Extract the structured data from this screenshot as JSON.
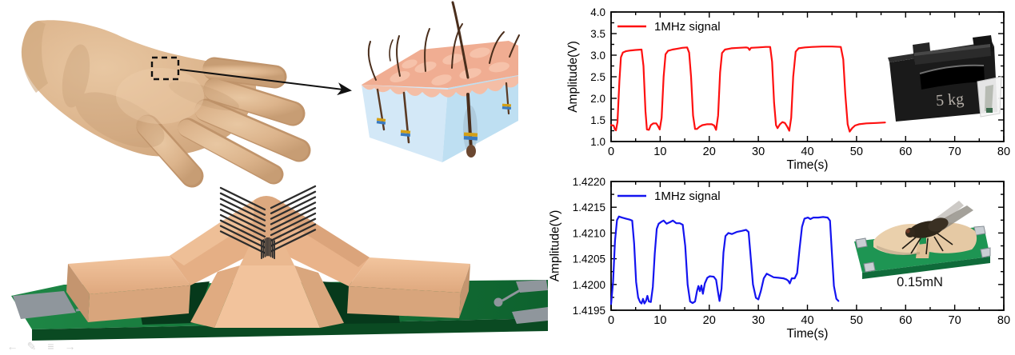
{
  "figure": {
    "description_labels": {
      "weight_inset_label": "5 kg",
      "fly_inset_label": "0.15mN"
    }
  },
  "left_panel": {
    "watermark_icons": [
      {
        "name": "arrow-left-icon",
        "glyph": "←"
      },
      {
        "name": "pencil-icon",
        "glyph": "✎"
      },
      {
        "name": "menu-icon",
        "glyph": "≡"
      },
      {
        "name": "arrow-right-icon",
        "glyph": "→"
      }
    ]
  },
  "chart_data": [
    {
      "id": "heavy-load-response",
      "type": "line",
      "title": "",
      "legend": "1MHz signal",
      "line_color": "#fe1010",
      "xlabel": "Time(s)",
      "ylabel": "Amplitude(V)",
      "xlim": [
        0,
        80
      ],
      "ylim": [
        1.0,
        4.0
      ],
      "x_ticks": [
        0,
        10,
        20,
        30,
        40,
        50,
        60,
        70,
        80
      ],
      "x_minor_step": 5,
      "y_ticks": [
        "1.0",
        "1.5",
        "2.0",
        "2.5",
        "3.0",
        "3.5",
        "4.0"
      ],
      "y_tick_values": [
        1.0,
        1.5,
        2.0,
        2.5,
        3.0,
        3.5,
        4.0
      ],
      "y_minor_step": 0.25,
      "grid": false,
      "legend_position": "top-left",
      "inset": {
        "kind": "photo",
        "label": "5 kg",
        "content": "5 kg cast-iron weight on sensor"
      },
      "points": [
        [
          0,
          1.38
        ],
        [
          0.5,
          1.37
        ],
        [
          0.8,
          1.28
        ],
        [
          1.0,
          1.26
        ],
        [
          1.3,
          1.45
        ],
        [
          1.7,
          2.4
        ],
        [
          2.0,
          2.95
        ],
        [
          2.4,
          3.06
        ],
        [
          3.0,
          3.09
        ],
        [
          4.0,
          3.11
        ],
        [
          5.0,
          3.12
        ],
        [
          6.2,
          3.13
        ],
        [
          6.6,
          2.75
        ],
        [
          7.0,
          1.7
        ],
        [
          7.3,
          1.28
        ],
        [
          7.7,
          1.27
        ],
        [
          8.1,
          1.38
        ],
        [
          8.6,
          1.42
        ],
        [
          9.2,
          1.42
        ],
        [
          9.6,
          1.35
        ],
        [
          9.9,
          1.28
        ],
        [
          10.3,
          1.55
        ],
        [
          10.7,
          2.5
        ],
        [
          11.1,
          3.02
        ],
        [
          11.6,
          3.1
        ],
        [
          12.5,
          3.13
        ],
        [
          13.5,
          3.15
        ],
        [
          14.5,
          3.17
        ],
        [
          15.5,
          3.18
        ],
        [
          15.9,
          3.06
        ],
        [
          16.3,
          2.5
        ],
        [
          16.7,
          1.6
        ],
        [
          17.1,
          1.29
        ],
        [
          17.5,
          1.29
        ],
        [
          18.0,
          1.34
        ],
        [
          18.6,
          1.38
        ],
        [
          19.5,
          1.4
        ],
        [
          20.5,
          1.4
        ],
        [
          21.0,
          1.37
        ],
        [
          21.4,
          1.27
        ],
        [
          21.8,
          1.6
        ],
        [
          22.2,
          2.6
        ],
        [
          22.6,
          3.05
        ],
        [
          23.2,
          3.13
        ],
        [
          24.5,
          3.16
        ],
        [
          26.0,
          3.17
        ],
        [
          27.5,
          3.18
        ],
        [
          27.9,
          3.17
        ],
        [
          28.2,
          3.12
        ],
        [
          28.5,
          3.17
        ],
        [
          30.0,
          3.18
        ],
        [
          31.5,
          3.19
        ],
        [
          32.4,
          3.19
        ],
        [
          32.8,
          2.85
        ],
        [
          33.2,
          1.9
        ],
        [
          33.6,
          1.38
        ],
        [
          33.9,
          1.31
        ],
        [
          34.4,
          1.4
        ],
        [
          34.9,
          1.45
        ],
        [
          35.4,
          1.43
        ],
        [
          35.9,
          1.34
        ],
        [
          36.3,
          1.25
        ],
        [
          36.7,
          1.55
        ],
        [
          37.1,
          2.5
        ],
        [
          37.6,
          3.08
        ],
        [
          38.2,
          3.16
        ],
        [
          39.5,
          3.18
        ],
        [
          41.0,
          3.19
        ],
        [
          43.0,
          3.2
        ],
        [
          45.0,
          3.2
        ],
        [
          46.8,
          3.19
        ],
        [
          47.3,
          2.9
        ],
        [
          47.7,
          2.1
        ],
        [
          48.2,
          1.4
        ],
        [
          48.6,
          1.23
        ],
        [
          49.1,
          1.31
        ],
        [
          49.7,
          1.37
        ],
        [
          50.5,
          1.4
        ],
        [
          52.0,
          1.42
        ],
        [
          54.0,
          1.43
        ],
        [
          55.8,
          1.44
        ]
      ]
    },
    {
      "id": "light-load-response",
      "type": "line",
      "title": "",
      "legend": "1MHz signal",
      "line_color": "#1414f0",
      "xlabel": "Time(s)",
      "ylabel": "Amplitude(V)",
      "xlim": [
        0,
        80
      ],
      "ylim": [
        1.4195,
        1.422
      ],
      "x_ticks": [
        0,
        10,
        20,
        30,
        40,
        50,
        60,
        70,
        80
      ],
      "x_minor_step": 5,
      "y_ticks": [
        "1.4195",
        "1.4200",
        "1.4205",
        "1.4210",
        "1.4215",
        "1.4220"
      ],
      "y_tick_values": [
        1.4195,
        1.42,
        1.4205,
        1.421,
        1.4215,
        1.422
      ],
      "y_minor_step": 0.00025,
      "grid": false,
      "legend_position": "top-left",
      "inset": {
        "kind": "photo",
        "label": "0.15mN",
        "content": "fly standing on flexible sensor"
      },
      "points": [
        [
          0,
          1.41962
        ],
        [
          0.4,
          1.42005
        ],
        [
          0.8,
          1.42085
        ],
        [
          1.2,
          1.42125
        ],
        [
          1.6,
          1.42132
        ],
        [
          2.2,
          1.4213
        ],
        [
          3.0,
          1.42128
        ],
        [
          3.8,
          1.42126
        ],
        [
          4.3,
          1.42124
        ],
        [
          4.7,
          1.4208
        ],
        [
          5.1,
          1.42005
        ],
        [
          5.5,
          1.41975
        ],
        [
          5.9,
          1.41966
        ],
        [
          6.2,
          1.41963
        ],
        [
          6.5,
          1.41972
        ],
        [
          6.8,
          1.41963
        ],
        [
          7.1,
          1.41968
        ],
        [
          7.4,
          1.41978
        ],
        [
          7.7,
          1.41967
        ],
        [
          8.1,
          1.41966
        ],
        [
          8.5,
          1.41995
        ],
        [
          8.9,
          1.4206
        ],
        [
          9.3,
          1.42108
        ],
        [
          9.7,
          1.42118
        ],
        [
          10.3,
          1.42122
        ],
        [
          10.7,
          1.42124
        ],
        [
          11.3,
          1.42118
        ],
        [
          12.0,
          1.42121
        ],
        [
          12.6,
          1.42124
        ],
        [
          13.3,
          1.42119
        ],
        [
          14.0,
          1.42119
        ],
        [
          14.6,
          1.42116
        ],
        [
          15.1,
          1.42075
        ],
        [
          15.6,
          1.42
        ],
        [
          16.1,
          1.41967
        ],
        [
          16.6,
          1.41964
        ],
        [
          17.1,
          1.41967
        ],
        [
          17.5,
          1.41987
        ],
        [
          17.8,
          1.41997
        ],
        [
          18.1,
          1.41987
        ],
        [
          18.4,
          1.41998
        ],
        [
          18.7,
          1.41982
        ],
        [
          19.1,
          1.42002
        ],
        [
          19.6,
          1.42013
        ],
        [
          20.1,
          1.42016
        ],
        [
          20.9,
          1.42015
        ],
        [
          21.4,
          1.42009
        ],
        [
          21.8,
          1.41984
        ],
        [
          22.1,
          1.41968
        ],
        [
          22.5,
          1.41992
        ],
        [
          22.9,
          1.42062
        ],
        [
          23.3,
          1.42094
        ],
        [
          23.9,
          1.421
        ],
        [
          24.6,
          1.42098
        ],
        [
          25.6,
          1.42102
        ],
        [
          26.6,
          1.42104
        ],
        [
          27.5,
          1.42106
        ],
        [
          28.0,
          1.42102
        ],
        [
          28.4,
          1.42058
        ],
        [
          28.9,
          1.42
        ],
        [
          29.5,
          1.41974
        ],
        [
          30.0,
          1.41971
        ],
        [
          30.5,
          1.41987
        ],
        [
          31.1,
          1.42012
        ],
        [
          31.7,
          1.42021
        ],
        [
          32.3,
          1.42018
        ],
        [
          33.1,
          1.42014
        ],
        [
          34.1,
          1.42013
        ],
        [
          35.1,
          1.42012
        ],
        [
          35.7,
          1.4201
        ],
        [
          36.1,
          1.42007
        ],
        [
          36.4,
          1.42002
        ],
        [
          36.8,
          1.42012
        ],
        [
          37.4,
          1.42012
        ],
        [
          37.9,
          1.42022
        ],
        [
          38.4,
          1.4207
        ],
        [
          38.9,
          1.42112
        ],
        [
          39.4,
          1.42128
        ],
        [
          40.1,
          1.4213
        ],
        [
          40.6,
          1.42127
        ],
        [
          41.2,
          1.4213
        ],
        [
          42.2,
          1.4213
        ],
        [
          43.2,
          1.42131
        ],
        [
          44.1,
          1.4213
        ],
        [
          44.6,
          1.42124
        ],
        [
          45.0,
          1.42058
        ],
        [
          45.4,
          1.41997
        ],
        [
          45.9,
          1.41972
        ],
        [
          46.3,
          1.41968
        ]
      ]
    }
  ]
}
